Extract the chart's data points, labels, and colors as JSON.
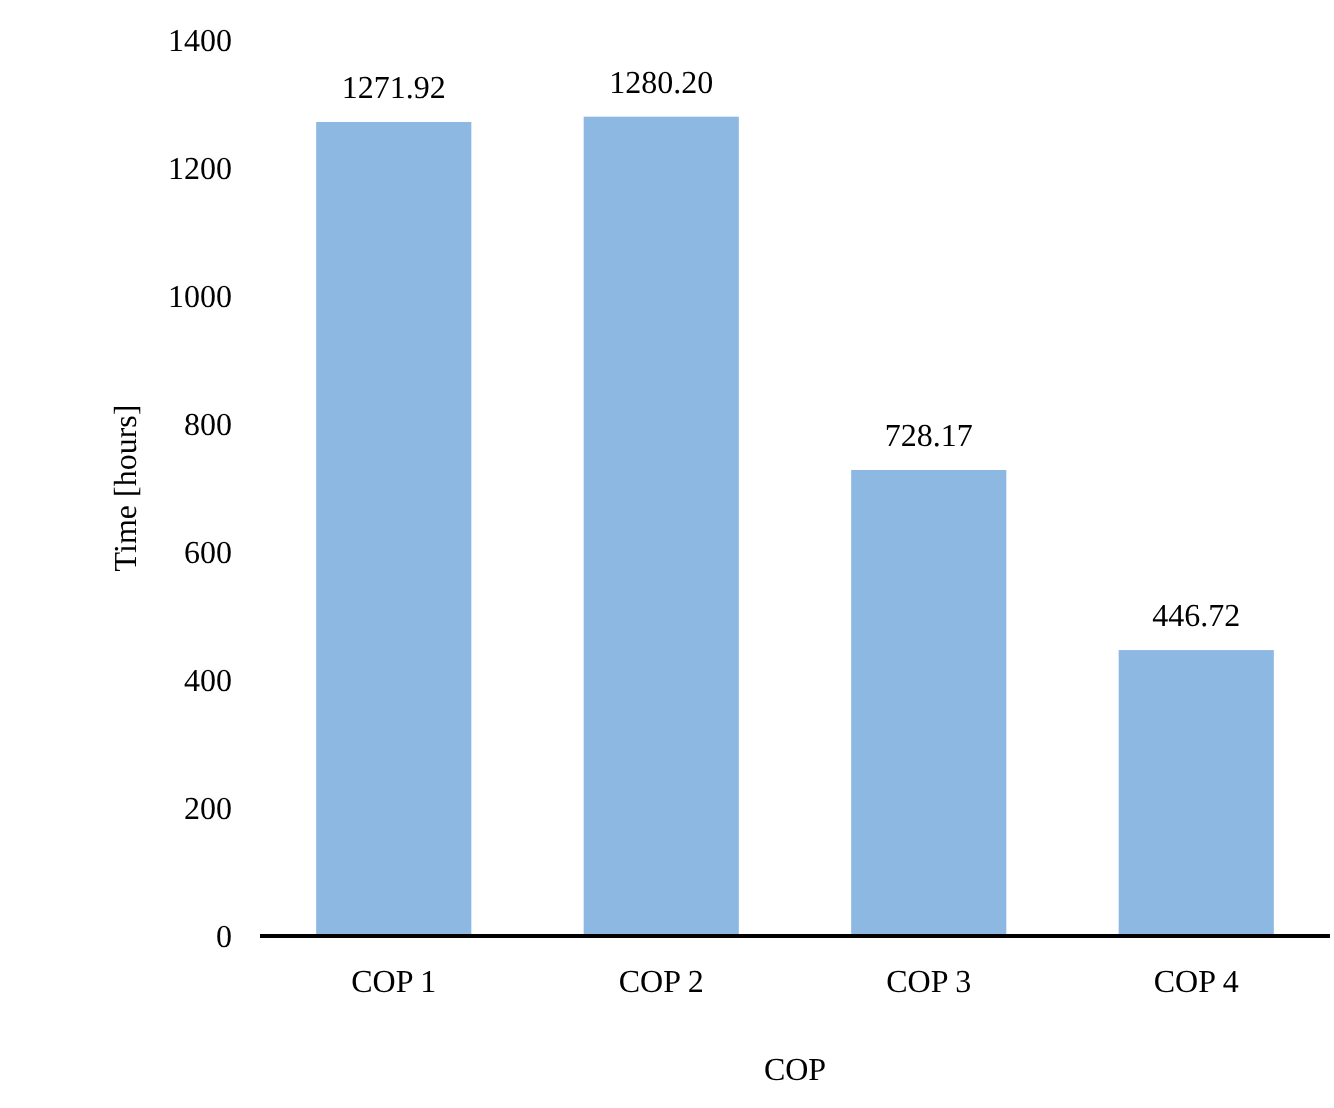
{
  "chart_data": {
    "type": "bar",
    "xlabel": "COP",
    "ylabel": "Time [hours]",
    "categories": [
      "COP 1",
      "COP 2",
      "COP 3",
      "COP 4"
    ],
    "values": [
      1271.92,
      1280.2,
      728.17,
      446.72
    ],
    "value_labels": [
      "1271.92",
      "1280.20",
      "728.17",
      "446.72"
    ],
    "color": "#8cb8e2",
    "ylim": [
      0,
      1400
    ],
    "yticks": [
      0,
      200,
      400,
      600,
      800,
      1000,
      1200,
      1400
    ],
    "grid": false
  }
}
